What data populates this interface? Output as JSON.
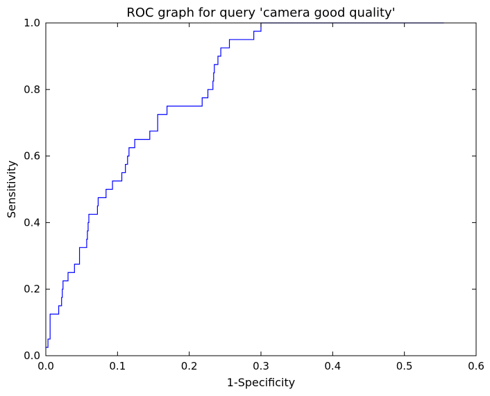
{
  "chart_data": {
    "type": "line",
    "title": "ROC graph for query 'camera good quality'",
    "xlabel": "1-Specificity",
    "ylabel": "Sensitivity",
    "xlim": [
      0,
      0.6
    ],
    "ylim": [
      0,
      1.0
    ],
    "xticks": [
      "0.0",
      "0.1",
      "0.2",
      "0.3",
      "0.4",
      "0.5",
      "0.6"
    ],
    "yticks": [
      "0.0",
      "0.2",
      "0.4",
      "0.6",
      "0.8",
      "1.0"
    ],
    "grid": false,
    "legend": "none",
    "line_color": "#0000ff",
    "series": [
      {
        "x": [
          0.0,
          0.003,
          0.003,
          0.006,
          0.006,
          0.018,
          0.018,
          0.022,
          0.022,
          0.023,
          0.023,
          0.024,
          0.024,
          0.031,
          0.031,
          0.04,
          0.04,
          0.047,
          0.047,
          0.057,
          0.057,
          0.058,
          0.058,
          0.059,
          0.059,
          0.06,
          0.06,
          0.072,
          0.072,
          0.073,
          0.073,
          0.084,
          0.084,
          0.093,
          0.093,
          0.106,
          0.106,
          0.111,
          0.111,
          0.114,
          0.114,
          0.116,
          0.116,
          0.124,
          0.124,
          0.145,
          0.145,
          0.156,
          0.156,
          0.169,
          0.169,
          0.218,
          0.218,
          0.226,
          0.226,
          0.233,
          0.233,
          0.234,
          0.234,
          0.235,
          0.235,
          0.238,
          0.238,
          0.24,
          0.24,
          0.244,
          0.244,
          0.256,
          0.256,
          0.29,
          0.29,
          0.3,
          0.3,
          0.354,
          0.354,
          0.555
        ],
        "y": [
          0.025,
          0.025,
          0.05,
          0.05,
          0.125,
          0.125,
          0.15,
          0.15,
          0.175,
          0.175,
          0.2,
          0.2,
          0.225,
          0.225,
          0.25,
          0.25,
          0.275,
          0.275,
          0.325,
          0.325,
          0.35,
          0.35,
          0.375,
          0.375,
          0.4,
          0.4,
          0.425,
          0.425,
          0.45,
          0.45,
          0.475,
          0.475,
          0.5,
          0.5,
          0.525,
          0.525,
          0.55,
          0.55,
          0.575,
          0.575,
          0.6,
          0.6,
          0.625,
          0.625,
          0.65,
          0.65,
          0.675,
          0.675,
          0.725,
          0.725,
          0.75,
          0.75,
          0.775,
          0.775,
          0.8,
          0.8,
          0.825,
          0.825,
          0.85,
          0.85,
          0.875,
          0.875,
          0.875,
          0.875,
          0.9,
          0.9,
          0.925,
          0.925,
          0.95,
          0.95,
          0.975,
          0.975,
          1.0,
          1.0,
          1.0,
          1.0
        ]
      }
    ]
  }
}
